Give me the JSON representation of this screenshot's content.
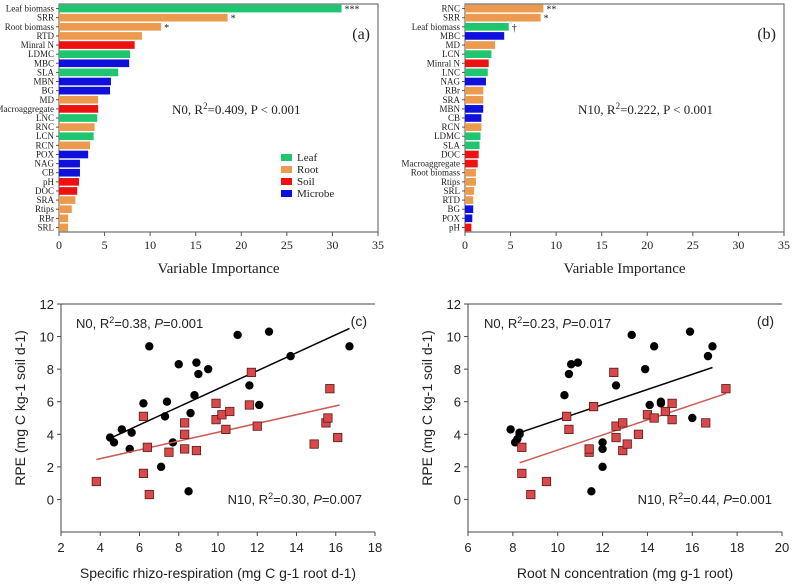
{
  "chart_data": [
    {
      "id": "a",
      "type": "bar",
      "orientation": "horizontal",
      "panel_label": "(a)",
      "annotation": {
        "prefix": "N0, R",
        "sup": "2",
        "suffix": "=0.409, P < 0.001"
      },
      "xlabel": "Variable Importance",
      "xlim": [
        0,
        35
      ],
      "xticks": [
        0,
        5,
        10,
        15,
        20,
        25,
        30,
        35
      ],
      "legend": {
        "position": "center-right",
        "entries": [
          {
            "label": "Leaf",
            "group": "leaf"
          },
          {
            "label": "Root",
            "group": "root"
          },
          {
            "label": "Soil",
            "group": "soil"
          },
          {
            "label": "Microbe",
            "group": "microbe"
          }
        ]
      },
      "bars": [
        {
          "label": "Leaf biomass",
          "value": 31.0,
          "group": "leaf",
          "sig": "***"
        },
        {
          "label": "SRR",
          "value": 18.5,
          "group": "root",
          "sig": "*"
        },
        {
          "label": "Root biomass",
          "value": 11.2,
          "group": "root",
          "sig": "*"
        },
        {
          "label": "RTD",
          "value": 9.1,
          "group": "root",
          "sig": ""
        },
        {
          "label": "Minral N",
          "value": 8.3,
          "group": "soil",
          "sig": ""
        },
        {
          "label": "LDMC",
          "value": 7.8,
          "group": "leaf",
          "sig": ""
        },
        {
          "label": "MBC",
          "value": 7.7,
          "group": "microbe",
          "sig": ""
        },
        {
          "label": "SLA",
          "value": 6.5,
          "group": "leaf",
          "sig": ""
        },
        {
          "label": "MBN",
          "value": 5.7,
          "group": "microbe",
          "sig": ""
        },
        {
          "label": "BG",
          "value": 5.6,
          "group": "microbe",
          "sig": ""
        },
        {
          "label": "MD",
          "value": 4.3,
          "group": "root",
          "sig": ""
        },
        {
          "label": "Macroaggregate",
          "value": 4.3,
          "group": "soil",
          "sig": ""
        },
        {
          "label": "LNC",
          "value": 4.2,
          "group": "leaf",
          "sig": ""
        },
        {
          "label": "RNC",
          "value": 3.9,
          "group": "root",
          "sig": ""
        },
        {
          "label": "LCN",
          "value": 3.8,
          "group": "leaf",
          "sig": ""
        },
        {
          "label": "RCN",
          "value": 3.4,
          "group": "root",
          "sig": ""
        },
        {
          "label": "POX",
          "value": 3.2,
          "group": "microbe",
          "sig": ""
        },
        {
          "label": "NAG",
          "value": 2.3,
          "group": "microbe",
          "sig": ""
        },
        {
          "label": "CB",
          "value": 2.3,
          "group": "microbe",
          "sig": ""
        },
        {
          "label": "pH",
          "value": 2.2,
          "group": "soil",
          "sig": ""
        },
        {
          "label": "DOC",
          "value": 2.0,
          "group": "soil",
          "sig": ""
        },
        {
          "label": "SRA",
          "value": 1.8,
          "group": "root",
          "sig": ""
        },
        {
          "label": "Rtips",
          "value": 1.4,
          "group": "root",
          "sig": ""
        },
        {
          "label": "RBr",
          "value": 1.0,
          "group": "root",
          "sig": ""
        },
        {
          "label": "SRL",
          "value": 1.0,
          "group": "root",
          "sig": ""
        }
      ]
    },
    {
      "id": "b",
      "type": "bar",
      "orientation": "horizontal",
      "panel_label": "(b)",
      "annotation": {
        "prefix": "N10, R",
        "sup": "2",
        "suffix": "=0.222, P < 0.001"
      },
      "xlabel": "Variable Importance",
      "xlim": [
        0,
        35
      ],
      "xticks": [
        0,
        5,
        10,
        15,
        20,
        25,
        30,
        35
      ],
      "bars": [
        {
          "label": "RNC",
          "value": 8.6,
          "group": "root",
          "sig": "**"
        },
        {
          "label": "SRR",
          "value": 8.3,
          "group": "root",
          "sig": "*"
        },
        {
          "label": "Leaf biomass",
          "value": 4.8,
          "group": "leaf",
          "sig": "†"
        },
        {
          "label": "MBC",
          "value": 4.3,
          "group": "microbe",
          "sig": ""
        },
        {
          "label": "MD",
          "value": 3.3,
          "group": "root",
          "sig": ""
        },
        {
          "label": "LCN",
          "value": 2.9,
          "group": "leaf",
          "sig": ""
        },
        {
          "label": "Minral N",
          "value": 2.6,
          "group": "soil",
          "sig": ""
        },
        {
          "label": "LNC",
          "value": 2.5,
          "group": "leaf",
          "sig": ""
        },
        {
          "label": "NAG",
          "value": 2.3,
          "group": "microbe",
          "sig": ""
        },
        {
          "label": "RBr",
          "value": 2.0,
          "group": "root",
          "sig": ""
        },
        {
          "label": "SRA",
          "value": 2.0,
          "group": "root",
          "sig": ""
        },
        {
          "label": "MBN",
          "value": 2.0,
          "group": "microbe",
          "sig": ""
        },
        {
          "label": "CB",
          "value": 1.8,
          "group": "microbe",
          "sig": ""
        },
        {
          "label": "RCN",
          "value": 1.8,
          "group": "root",
          "sig": ""
        },
        {
          "label": "LDMC",
          "value": 1.7,
          "group": "leaf",
          "sig": ""
        },
        {
          "label": "SLA",
          "value": 1.6,
          "group": "leaf",
          "sig": ""
        },
        {
          "label": "DOC",
          "value": 1.5,
          "group": "soil",
          "sig": ""
        },
        {
          "label": "Macroaggregate",
          "value": 1.4,
          "group": "soil",
          "sig": ""
        },
        {
          "label": "Root biomass",
          "value": 1.2,
          "group": "root",
          "sig": ""
        },
        {
          "label": "Rtips",
          "value": 1.2,
          "group": "root",
          "sig": ""
        },
        {
          "label": "SRL",
          "value": 1.0,
          "group": "root",
          "sig": ""
        },
        {
          "label": "RTD",
          "value": 0.9,
          "group": "root",
          "sig": ""
        },
        {
          "label": "BG",
          "value": 0.9,
          "group": "microbe",
          "sig": ""
        },
        {
          "label": "POX",
          "value": 0.8,
          "group": "microbe",
          "sig": ""
        },
        {
          "label": "pH",
          "value": 0.7,
          "group": "soil",
          "sig": ""
        }
      ]
    },
    {
      "id": "c",
      "type": "scatter",
      "panel_label": "(c)",
      "xlabel": "Specific rhizo-respiration (mg C g-1 root d-1)",
      "ylabel": "RPE (mg C kg-1 soil d-1)",
      "xlim": [
        2,
        18
      ],
      "ylim": [
        -2,
        12
      ],
      "xticks": [
        2,
        4,
        6,
        8,
        10,
        12,
        14,
        16,
        18
      ],
      "yticks": [
        0,
        2,
        4,
        6,
        8,
        10,
        12
      ],
      "series": [
        {
          "name": "N0",
          "marker": "circle",
          "stats": {
            "r2": "0.38",
            "p": "0.001"
          },
          "fit": [
            [
              4.5,
              3.75
            ],
            [
              16.7,
              10.5
            ]
          ],
          "points": [
            [
              4.5,
              3.8
            ],
            [
              4.7,
              3.5
            ],
            [
              5.1,
              4.3
            ],
            [
              5.5,
              3.1
            ],
            [
              5.6,
              4.1
            ],
            [
              6.2,
              5.9
            ],
            [
              6.5,
              9.4
            ],
            [
              7.1,
              2.0
            ],
            [
              7.3,
              5.1
            ],
            [
              7.4,
              6.0
            ],
            [
              7.7,
              3.5
            ],
            [
              8.0,
              8.3
            ],
            [
              8.5,
              0.5
            ],
            [
              8.6,
              5.3
            ],
            [
              8.8,
              6.4
            ],
            [
              8.9,
              8.4
            ],
            [
              9.0,
              7.7
            ],
            [
              9.5,
              8.0
            ],
            [
              11.0,
              10.1
            ],
            [
              11.6,
              7.0
            ],
            [
              12.1,
              5.8
            ],
            [
              12.6,
              10.3
            ],
            [
              13.7,
              8.8
            ],
            [
              16.7,
              9.4
            ]
          ]
        },
        {
          "name": "N10",
          "marker": "square",
          "stats": {
            "r2": "0.30",
            "p": "0.007"
          },
          "fit": [
            [
              3.8,
              2.45
            ],
            [
              16.2,
              5.8
            ]
          ],
          "points": [
            [
              3.8,
              1.1
            ],
            [
              6.2,
              5.1
            ],
            [
              6.2,
              1.6
            ],
            [
              6.4,
              3.2
            ],
            [
              6.5,
              0.3
            ],
            [
              7.5,
              2.9
            ],
            [
              8.3,
              4.7
            ],
            [
              8.3,
              4.0
            ],
            [
              8.3,
              3.1
            ],
            [
              8.9,
              3.0
            ],
            [
              9.9,
              5.9
            ],
            [
              9.9,
              4.9
            ],
            [
              10.2,
              5.2
            ],
            [
              10.4,
              4.3
            ],
            [
              10.6,
              5.4
            ],
            [
              11.6,
              5.8
            ],
            [
              11.7,
              7.8
            ],
            [
              12.0,
              4.5
            ],
            [
              14.9,
              3.4
            ],
            [
              15.5,
              4.7
            ],
            [
              15.6,
              5.0
            ],
            [
              15.7,
              6.8
            ],
            [
              16.1,
              3.8
            ]
          ]
        }
      ]
    },
    {
      "id": "d",
      "type": "scatter",
      "panel_label": "(d)",
      "xlabel": "Root N concentration (mg g-1 root)",
      "ylabel": "RPE (mg C kg-1 soil d-1)",
      "xlim": [
        6,
        20
      ],
      "ylim": [
        -2,
        12
      ],
      "xticks": [
        6,
        8,
        10,
        12,
        14,
        16,
        18,
        20
      ],
      "yticks": [
        0,
        2,
        4,
        6,
        8,
        10,
        12
      ],
      "series": [
        {
          "name": "N0",
          "marker": "circle",
          "stats": {
            "r2": "0.23",
            "p": "0.017"
          },
          "fit": [
            [
              8.3,
              4.1
            ],
            [
              16.9,
              8.1
            ]
          ],
          "points": [
            [
              7.9,
              4.3
            ],
            [
              8.1,
              3.5
            ],
            [
              8.2,
              3.7
            ],
            [
              8.3,
              4.0
            ],
            [
              8.3,
              4.1
            ],
            [
              10.3,
              6.4
            ],
            [
              10.5,
              7.7
            ],
            [
              10.6,
              8.3
            ],
            [
              10.9,
              8.4
            ],
            [
              11.5,
              0.5
            ],
            [
              12.0,
              3.5
            ],
            [
              12.0,
              2.0
            ],
            [
              12.0,
              3.1
            ],
            [
              12.6,
              7.0
            ],
            [
              13.3,
              10.1
            ],
            [
              13.9,
              8.0
            ],
            [
              14.1,
              5.8
            ],
            [
              14.3,
              9.4
            ],
            [
              14.6,
              6.0
            ],
            [
              14.6,
              5.9
            ],
            [
              15.9,
              10.3
            ],
            [
              16.0,
              5.0
            ],
            [
              16.7,
              8.8
            ],
            [
              16.9,
              9.4
            ]
          ]
        },
        {
          "name": "N10",
          "marker": "square",
          "stats": {
            "r2": "0.44",
            "p": "0.001"
          },
          "fit": [
            [
              8.3,
              2.25
            ],
            [
              17.5,
              6.5
            ]
          ],
          "points": [
            [
              8.4,
              3.2
            ],
            [
              8.4,
              1.6
            ],
            [
              8.8,
              0.3
            ],
            [
              9.5,
              1.1
            ],
            [
              10.4,
              5.1
            ],
            [
              10.5,
              4.3
            ],
            [
              11.4,
              2.9
            ],
            [
              11.4,
              3.1
            ],
            [
              11.6,
              5.7
            ],
            [
              12.5,
              7.8
            ],
            [
              12.6,
              4.5
            ],
            [
              12.6,
              3.8
            ],
            [
              12.9,
              4.7
            ],
            [
              12.9,
              3.0
            ],
            [
              13.1,
              3.4
            ],
            [
              13.6,
              4.0
            ],
            [
              14.0,
              5.2
            ],
            [
              14.3,
              5.0
            ],
            [
              14.8,
              5.4
            ],
            [
              15.1,
              5.9
            ],
            [
              15.1,
              4.9
            ],
            [
              16.6,
              4.7
            ],
            [
              17.5,
              6.8
            ]
          ]
        }
      ]
    }
  ],
  "colors": {
    "leaf": "#1fc66f",
    "root": "#ec9a4e",
    "soil": "#ee1111",
    "microbe": "#1010dd",
    "n0_marker": "#000000",
    "n10_marker": "#d9484a",
    "n0_line": "#000000",
    "n10_line": "#cc5a52"
  }
}
